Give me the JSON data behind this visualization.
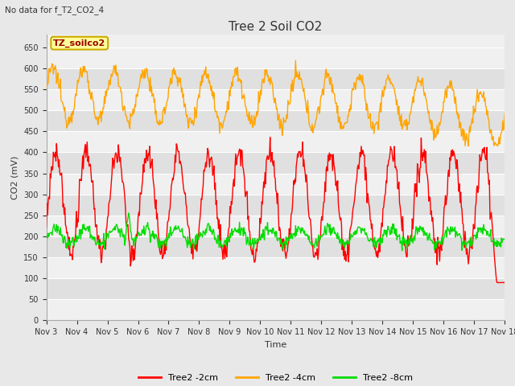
{
  "title": "Tree 2 Soil CO2",
  "subtitle": "No data for f_T2_CO2_4",
  "xlabel": "Time",
  "ylabel": "CO2 (mV)",
  "ylim": [
    0,
    680
  ],
  "yticks": [
    0,
    50,
    100,
    150,
    200,
    250,
    300,
    350,
    400,
    450,
    500,
    550,
    600,
    650
  ],
  "x_labels": [
    "Nov 3",
    "Nov 4",
    "Nov 5",
    "Nov 6",
    "Nov 7",
    "Nov 8",
    "Nov 9",
    "Nov 10",
    "Nov 11",
    "Nov 12",
    "Nov 13",
    "Nov 14",
    "Nov 15",
    "Nov 16",
    "Nov 17",
    "Nov 18"
  ],
  "color_red": "#FF0000",
  "color_orange": "#FFA500",
  "color_green": "#00DD00",
  "legend_box_facecolor": "#FFFF99",
  "legend_box_edgecolor": "#CCAA00",
  "legend_box_text": "TZ_soilco2",
  "legend_text_color": "#990000",
  "fig_bg": "#E8E8E8",
  "plot_bg_light": "#F0F0F0",
  "plot_bg_dark": "#E0E0E0",
  "grid_color": "#FFFFFF",
  "linewidth": 1.0,
  "title_fontsize": 11,
  "subtitle_fontsize": 7.5,
  "axis_label_fontsize": 8,
  "tick_fontsize": 7,
  "legend_fontsize": 8
}
